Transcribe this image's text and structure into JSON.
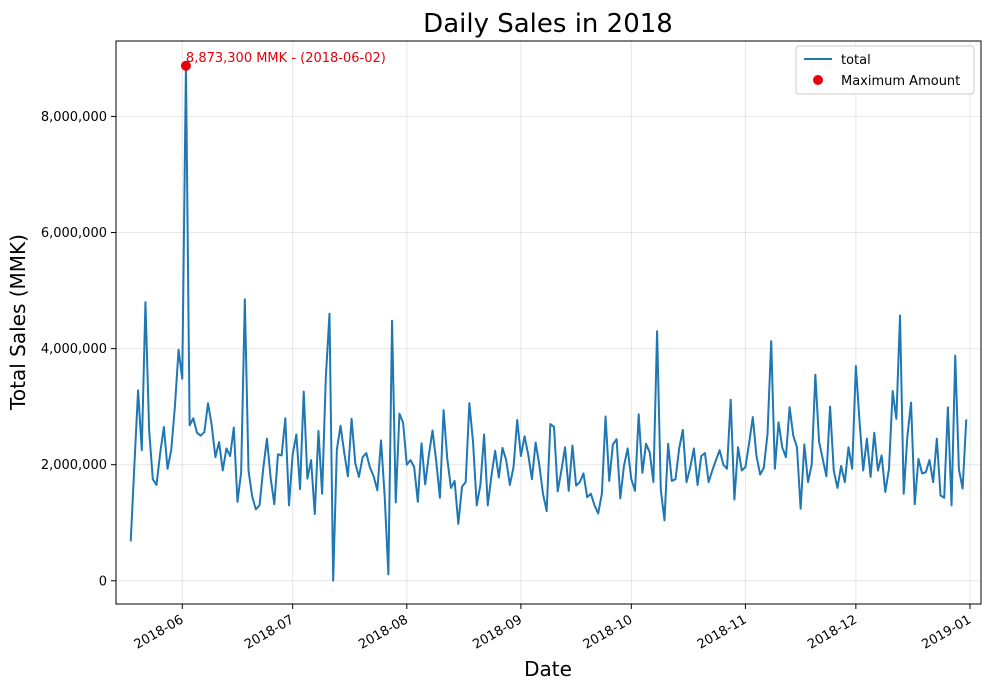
{
  "chart_data": {
    "type": "line",
    "title": "Daily Sales in 2018",
    "xlabel": "Date",
    "ylabel": "Total Sales (MMK)",
    "x_start": "2018-05-18",
    "x_end": "2018-12-31",
    "xlim": [
      "2018-05-14",
      "2019-01-04"
    ],
    "ylim": [
      -400000,
      9300000
    ],
    "x_ticks": [
      "2018-06-01",
      "2018-07-01",
      "2018-08-01",
      "2018-09-01",
      "2018-10-01",
      "2018-11-01",
      "2018-12-01",
      "2019-01-01"
    ],
    "x_tick_labels": [
      "2018-06",
      "2018-07",
      "2018-08",
      "2018-09",
      "2018-10",
      "2018-11",
      "2018-12",
      "2019-01"
    ],
    "y_ticks": [
      0,
      2000000,
      4000000,
      6000000,
      8000000
    ],
    "y_tick_labels": [
      "0",
      "2,000,000",
      "4,000,000",
      "6,000,000",
      "8,000,000"
    ],
    "grid": true,
    "legend_position": "top-right",
    "series": [
      {
        "name": "total",
        "color": "#1f77b4",
        "values": [
          680000,
          2000000,
          3280000,
          2250000,
          4800000,
          2600000,
          1750000,
          1650000,
          2200000,
          2650000,
          1930000,
          2250000,
          3000000,
          3980000,
          3480000,
          8873300,
          2680000,
          2800000,
          2550000,
          2500000,
          2560000,
          3060000,
          2680000,
          2130000,
          2390000,
          1900000,
          2280000,
          2150000,
          2640000,
          1360000,
          1870000,
          4850000,
          1900000,
          1450000,
          1230000,
          1300000,
          1930000,
          2450000,
          1780000,
          1320000,
          2180000,
          2160000,
          2800000,
          1300000,
          2180000,
          2520000,
          1580000,
          3260000,
          1760000,
          2080000,
          1150000,
          2580000,
          1500000,
          3500000,
          4600000,
          0,
          2260000,
          2670000,
          2210000,
          1800000,
          2790000,
          2030000,
          1790000,
          2130000,
          2200000,
          1950000,
          1800000,
          1560000,
          2420000,
          1450000,
          110000,
          4480000,
          1350000,
          2880000,
          2720000,
          2000000,
          2080000,
          1960000,
          1360000,
          2370000,
          1660000,
          2170000,
          2590000,
          2060000,
          1430000,
          2940000,
          2100000,
          1600000,
          1720000,
          980000,
          1620000,
          1700000,
          3060000,
          2390000,
          1300000,
          1650000,
          2520000,
          1300000,
          1810000,
          2240000,
          1780000,
          2290000,
          2080000,
          1650000,
          1960000,
          2770000,
          2150000,
          2490000,
          2170000,
          1750000,
          2380000,
          2000000,
          1500000,
          1200000,
          2700000,
          2650000,
          1540000,
          1900000,
          2300000,
          1550000,
          2330000,
          1640000,
          1700000,
          1850000,
          1440000,
          1500000,
          1300000,
          1160000,
          1500000,
          2830000,
          1720000,
          2350000,
          2440000,
          1420000,
          1980000,
          2280000,
          1750000,
          1550000,
          2870000,
          1860000,
          2360000,
          2210000,
          1700000,
          4300000,
          1580000,
          1040000,
          2360000,
          1720000,
          1750000,
          2280000,
          2600000,
          1700000,
          1950000,
          2280000,
          1650000,
          2150000,
          2200000,
          1700000,
          1900000,
          2080000,
          2250000,
          2000000,
          1930000,
          3120000,
          1400000,
          2300000,
          1900000,
          1960000,
          2370000,
          2820000,
          2150000,
          1830000,
          1950000,
          2530000,
          4130000,
          1930000,
          2730000,
          2300000,
          2130000,
          2990000,
          2500000,
          2300000,
          1240000,
          2350000,
          1700000,
          2000000,
          3550000,
          2400000,
          2100000,
          1800000,
          3000000,
          1900000,
          1600000,
          1980000,
          1700000,
          2300000,
          1930000,
          3700000,
          2750000,
          1900000,
          2450000,
          1790000,
          2550000,
          1900000,
          2160000,
          1530000,
          1930000,
          3270000,
          2790000,
          4570000,
          1500000,
          2490000,
          3070000,
          1320000,
          2100000,
          1850000,
          1870000,
          2080000,
          1700000,
          2450000,
          1470000,
          1430000,
          2990000,
          1300000,
          3880000,
          1920000,
          1590000,
          2780000
        ]
      }
    ],
    "highlight": {
      "name": "Maximum Amount",
      "date": "2018-06-02",
      "value": 8873300,
      "color": "#e8000b",
      "label": "8,873,300 MMK - (2018-06-02)"
    }
  }
}
